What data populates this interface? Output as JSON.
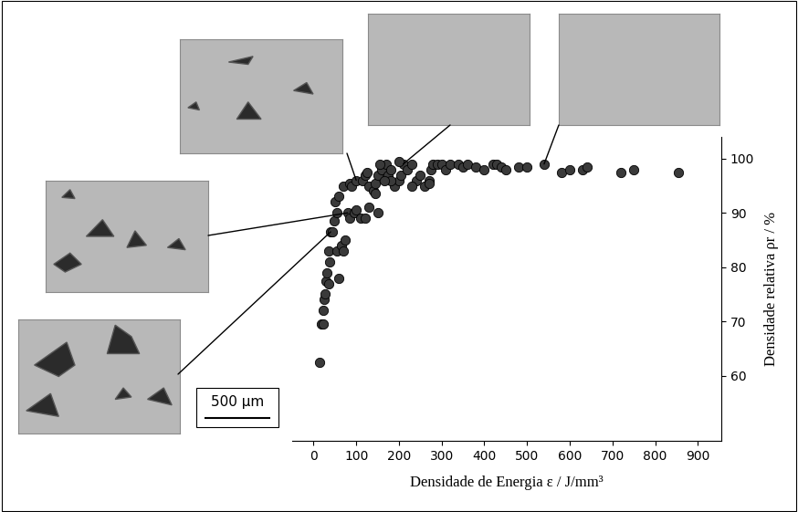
{
  "chart_data": {
    "type": "scatter",
    "x_label": "Densidade de Energia ε / J/mm³",
    "y_label": "Densidade relativa ρr / %",
    "annotations": [
      "500 µm"
    ],
    "x": [
      15,
      18,
      22,
      22,
      25,
      28,
      30,
      32,
      35,
      38,
      35,
      40,
      45,
      48,
      55,
      50,
      60,
      55,
      65,
      70,
      75,
      80,
      85,
      95,
      100,
      110,
      120,
      130,
      150,
      60,
      70,
      85,
      90,
      100,
      115,
      120,
      130,
      140,
      145,
      150,
      160,
      170,
      175,
      180,
      190,
      200,
      205,
      210,
      220,
      230,
      240,
      250,
      260,
      270,
      275,
      280,
      290,
      300,
      310,
      320,
      340,
      350,
      360,
      380,
      400,
      420,
      430,
      440,
      450,
      480,
      500,
      540,
      580,
      600,
      630,
      640,
      720,
      750,
      855,
      125,
      180,
      230,
      270,
      200,
      155,
      145,
      165
    ],
    "values": [
      62.5,
      69.5,
      69.5,
      72,
      74,
      75,
      77.5,
      79,
      77,
      81,
      83,
      86.5,
      86.5,
      88.5,
      90,
      92,
      78,
      83,
      84,
      83,
      85,
      90,
      89,
      90,
      90.5,
      89,
      89,
      91,
      90,
      93,
      95,
      95.5,
      95,
      96,
      96,
      97,
      95,
      94,
      95.5,
      97,
      98,
      99,
      97,
      98,
      95,
      96,
      97,
      99,
      98,
      99,
      96,
      97,
      95,
      96,
      98,
      99,
      99,
      99,
      98,
      99,
      99,
      98.5,
      99,
      98.5,
      98,
      99,
      99,
      98.5,
      98,
      98.5,
      98.5,
      99,
      97.5,
      98,
      98,
      98.5,
      97.5,
      98,
      97.5,
      97.5,
      96,
      95,
      95.5,
      99.5,
      99,
      93.5,
      96
    ],
    "color": "#3a3a3a",
    "marker": "o",
    "xlim": [
      -50,
      955
    ],
    "ylim": [
      48,
      104
    ],
    "xticks": [
      0,
      100,
      200,
      300,
      400,
      500,
      600,
      700,
      800,
      900
    ],
    "yticks": [
      60,
      70,
      80,
      90,
      100
    ],
    "grid": false
  }
}
